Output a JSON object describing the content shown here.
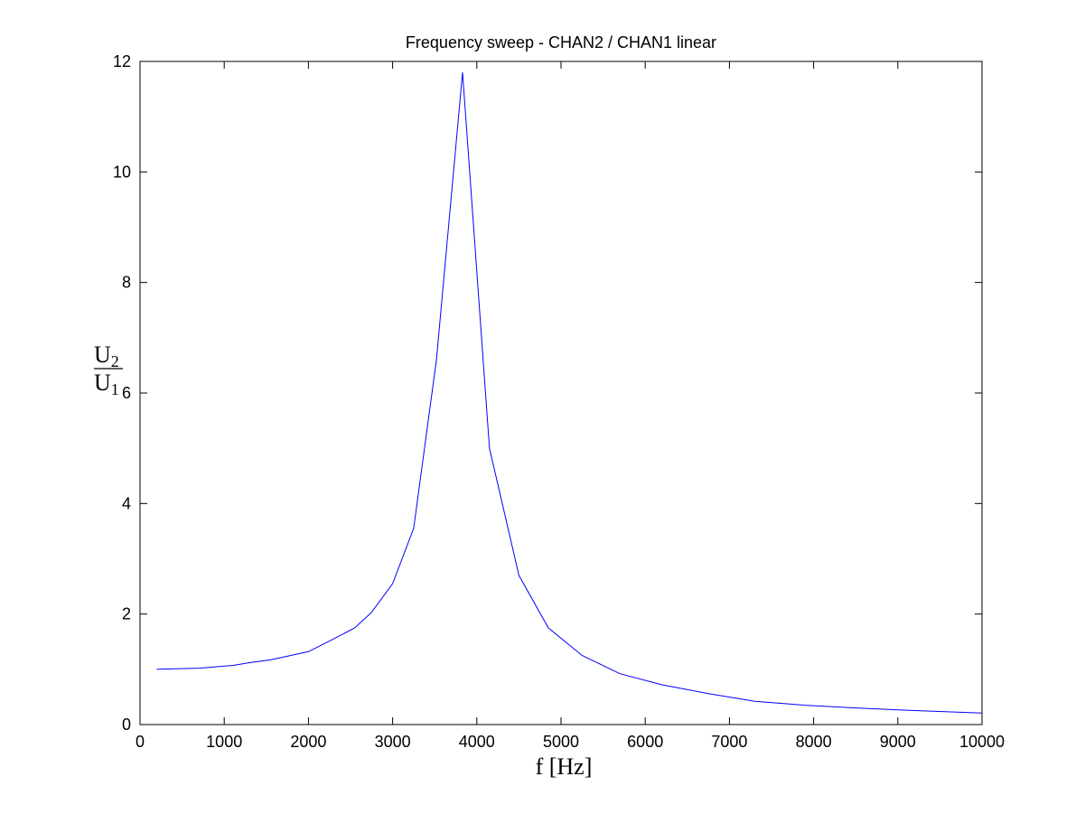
{
  "chart_data": {
    "type": "line",
    "title": "Frequency sweep - CHAN2 / CHAN1 linear",
    "xlabel": "f [Hz]",
    "ylabel": {
      "numerator": "U",
      "numerator_sub": "2",
      "denominator": "U",
      "denominator_sub": "1"
    },
    "xlim": [
      0,
      10000
    ],
    "ylim": [
      0,
      12
    ],
    "x_ticks": [
      0,
      1000,
      2000,
      3000,
      4000,
      5000,
      6000,
      7000,
      8000,
      9000,
      10000
    ],
    "y_ticks": [
      0,
      2,
      4,
      6,
      8,
      10,
      12
    ],
    "grid": false,
    "line_color": "#0000ff",
    "series": [
      {
        "x": [
          200,
          700,
          1100,
          1300,
          1550,
          2000,
          2300,
          2550,
          2750,
          3000,
          3250,
          3520,
          3830,
          4150,
          4500,
          4850,
          5250,
          5700,
          6200,
          6750,
          7300,
          7900,
          8500,
          9100,
          9600,
          10000
        ],
        "y": [
          1.0,
          1.02,
          1.07,
          1.12,
          1.17,
          1.32,
          1.55,
          1.75,
          2.03,
          2.55,
          3.55,
          6.6,
          11.8,
          5.0,
          2.7,
          1.75,
          1.25,
          0.92,
          0.72,
          0.56,
          0.42,
          0.35,
          0.3,
          0.26,
          0.23,
          0.21
        ]
      }
    ]
  }
}
